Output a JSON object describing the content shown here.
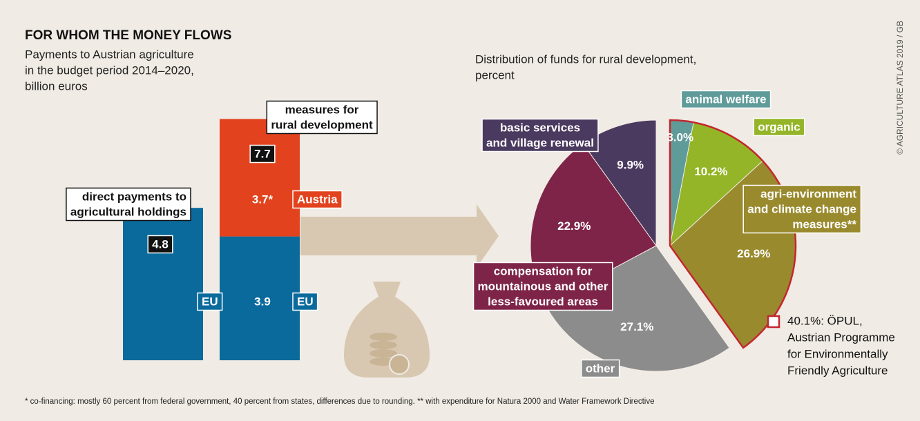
{
  "title": "FOR WHOM THE MONEY FLOWS",
  "credit": "© AGRICULTURE ATLAS 2019 / GB",
  "footnote": "* co-financing: mostly 60 percent from federal government, 40 percent from states, differences due to rounding. ** with expenditure for Natura 2000 and Water Framework Directive",
  "chart_data": [
    {
      "type": "bar",
      "stacked": true,
      "subtitle": [
        "Payments to Austrian agriculture",
        "in the budget period 2014–2020,",
        "billion euros"
      ],
      "categories": [
        [
          "direct payments to",
          "agricultural holdings"
        ],
        [
          "measures for",
          "rural development"
        ]
      ],
      "totals": [
        4.8,
        7.7
      ],
      "series": [
        {
          "name": "EU",
          "color": "#0b6a9c",
          "values": [
            4.8,
            3.9
          ],
          "value_labels": [
            null,
            "3.9"
          ]
        },
        {
          "name": "Austria",
          "color": "#e2431e",
          "values": [
            null,
            3.7
          ],
          "value_labels": [
            null,
            "3.7*"
          ]
        }
      ],
      "ylim": [
        0,
        8
      ]
    },
    {
      "type": "pie",
      "direction": "counterclockwise",
      "subtitle": [
        "Distribution of funds for rural development,",
        "percent"
      ],
      "categories": [
        [
          "basic services",
          "and village renewal"
        ],
        [
          "compensation for",
          "mountainous and other",
          "less-favoured areas"
        ],
        [
          "other"
        ],
        [
          "agri-environment",
          "and climate change",
          "measures**"
        ],
        [
          "organic"
        ],
        [
          "animal welfare"
        ]
      ],
      "values": [
        9.9,
        22.9,
        27.1,
        26.9,
        10.2,
        3.0
      ],
      "value_labels": [
        "9.9%",
        "22.9%",
        "27.1%",
        "26.9%",
        "10.2%",
        "3.0%"
      ],
      "colors": [
        "#4b3a5f",
        "#7e2448",
        "#8c8c8c",
        "#9a8a2e",
        "#94b527",
        "#5f9b99"
      ],
      "highlight": {
        "indices": [
          3,
          4,
          5
        ],
        "color": "#c4262e",
        "label": [
          "40.1%: ÖPUL,",
          "Austrian Programme",
          "for Environmentally",
          "Friendly Agriculture"
        ]
      }
    }
  ]
}
